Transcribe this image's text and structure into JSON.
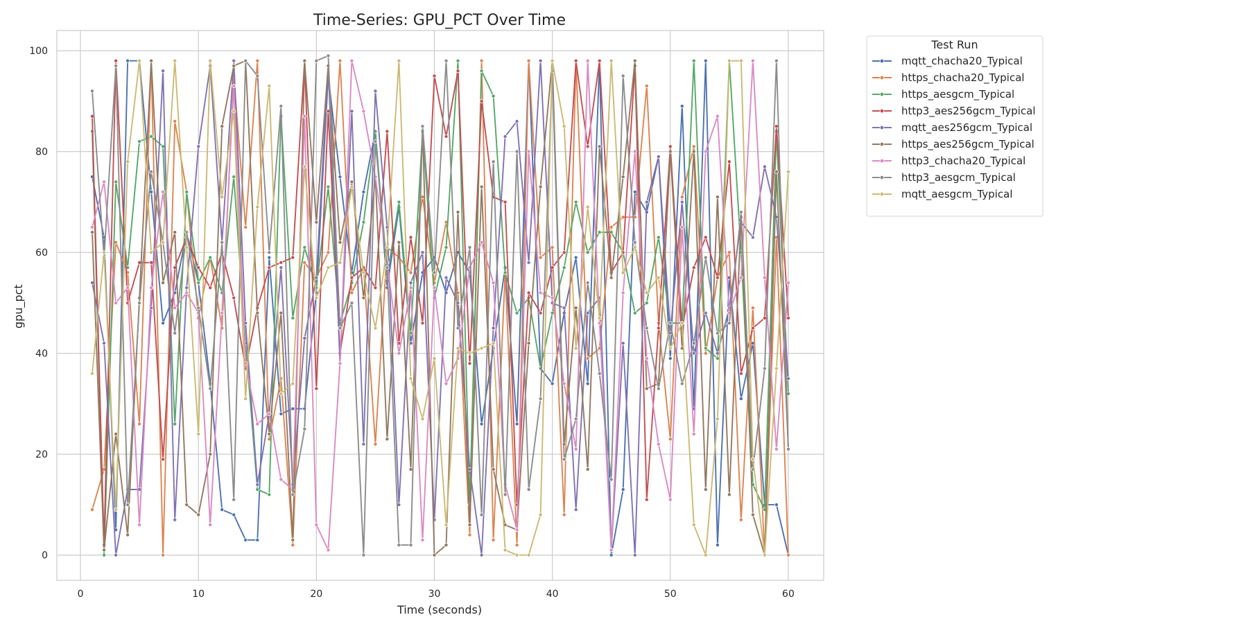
{
  "chart_data": {
    "type": "line",
    "title": "Time-Series: GPU_PCT Over Time",
    "xlabel": "Time (seconds)",
    "ylabel": "gpu_pct",
    "xlim": [
      -2,
      63
    ],
    "ylim": [
      -5,
      104
    ],
    "xticks": [
      0,
      10,
      20,
      30,
      40,
      50,
      60
    ],
    "yticks": [
      0,
      20,
      40,
      60,
      80,
      100
    ],
    "grid": true,
    "legend_title": "Test Run",
    "legend_position": "outside-top-right",
    "x": [
      1,
      2,
      3,
      4,
      5,
      6,
      7,
      8,
      9,
      10,
      11,
      12,
      13,
      14,
      15,
      16,
      17,
      18,
      19,
      20,
      21,
      22,
      23,
      24,
      25,
      26,
      27,
      28,
      29,
      30,
      31,
      32,
      33,
      34,
      35,
      36,
      37,
      38,
      39,
      40,
      41,
      42,
      43,
      44,
      45,
      46,
      47,
      48,
      49,
      50,
      51,
      52,
      53,
      54,
      55,
      56,
      57,
      58,
      59,
      60
    ],
    "series": [
      {
        "name": "mqtt_chacha20_Typical",
        "color": "#4c72b0",
        "values": [
          75,
          63,
          5,
          98,
          98,
          72,
          46,
          52,
          64,
          54,
          34,
          9,
          8,
          3,
          3,
          59,
          28,
          29,
          29,
          52,
          95,
          75,
          56,
          72,
          84,
          53,
          69,
          42,
          56,
          59,
          52,
          60,
          56,
          26,
          41,
          57,
          26,
          98,
          37,
          34,
          48,
          59,
          34,
          98,
          0,
          13,
          72,
          68,
          79,
          39,
          89,
          29,
          98,
          2,
          55,
          31,
          42,
          10,
          10,
          0
        ]
      },
      {
        "name": "https_chacha20_Typical",
        "color": "#dd8452",
        "values": [
          9,
          17,
          62,
          56,
          26,
          98,
          0,
          86,
          72,
          47,
          59,
          45,
          95,
          65,
          98,
          23,
          35,
          2,
          58,
          55,
          60,
          98,
          52,
          57,
          22,
          61,
          59,
          56,
          71,
          54,
          66,
          52,
          4,
          98,
          3,
          56,
          2,
          98,
          59,
          61,
          8,
          98,
          39,
          41,
          65,
          67,
          67,
          93,
          46,
          23,
          71,
          81,
          40,
          55,
          60,
          7,
          49,
          0,
          63,
          0
        ]
      },
      {
        "name": "https_aesgcm_Typical",
        "color": "#55a868",
        "values": [
          84,
          0,
          74,
          57,
          82,
          83,
          81,
          26,
          72,
          54,
          59,
          52,
          75,
          42,
          13,
          12,
          87,
          47,
          61,
          53,
          73,
          46,
          54,
          66,
          84,
          55,
          70,
          44,
          84,
          51,
          61,
          98,
          10,
          96,
          91,
          56,
          48,
          51,
          37,
          48,
          57,
          70,
          60,
          64,
          64,
          60,
          48,
          50,
          63,
          46,
          46,
          98,
          41,
          39,
          98,
          60,
          14,
          9,
          84,
          32
        ]
      },
      {
        "name": "http3_aes256gcm_Typical",
        "color": "#c44e52",
        "values": [
          87,
          2,
          98,
          50,
          58,
          58,
          19,
          57,
          63,
          57,
          53,
          60,
          51,
          37,
          49,
          57,
          58,
          59,
          98,
          33,
          88,
          40,
          55,
          57,
          53,
          84,
          42,
          63,
          46,
          95,
          83,
          96,
          38,
          90,
          71,
          70,
          10,
          52,
          48,
          57,
          60,
          98,
          81,
          98,
          56,
          60,
          97,
          11,
          45,
          81,
          45,
          57,
          63,
          55,
          78,
          36,
          45,
          47,
          85,
          47
        ]
      },
      {
        "name": "mqtt_aes256gcm_Typical",
        "color": "#8172b3",
        "values": [
          54,
          42,
          0,
          13,
          13,
          49,
          96,
          7,
          53,
          81,
          97,
          62,
          98,
          46,
          14,
          28,
          57,
          14,
          43,
          55,
          97,
          38,
          88,
          22,
          92,
          65,
          10,
          54,
          60,
          7,
          55,
          50,
          17,
          0,
          45,
          83,
          86,
          58,
          98,
          50,
          49,
          9,
          48,
          51,
          1,
          42,
          0,
          70,
          79,
          44,
          70,
          40,
          48,
          40,
          49,
          66,
          63,
          77,
          67,
          35
        ]
      },
      {
        "name": "https_aes256gcm_Typical",
        "color": "#937860",
        "values": [
          64,
          1,
          24,
          4,
          51,
          98,
          54,
          64,
          10,
          8,
          20,
          85,
          97,
          98,
          48,
          24,
          48,
          3,
          98,
          66,
          97,
          62,
          74,
          51,
          75,
          23,
          62,
          17,
          85,
          0,
          2,
          68,
          6,
          73,
          17,
          6,
          5,
          42,
          73,
          98,
          22,
          49,
          17,
          81,
          55,
          75,
          98,
          33,
          34,
          80,
          41,
          80,
          13,
          71,
          12,
          67,
          8,
          0,
          76,
          21
        ]
      },
      {
        "name": "http3_chacha20_Typical",
        "color": "#da8bc3",
        "values": [
          65,
          74,
          50,
          53,
          6,
          53,
          72,
          49,
          52,
          48,
          6,
          48,
          93,
          38,
          26,
          28,
          15,
          13,
          87,
          6,
          1,
          38,
          98,
          88,
          75,
          58,
          40,
          53,
          3,
          53,
          34,
          39,
          57,
          62,
          54,
          14,
          5,
          80,
          52,
          51,
          34,
          21,
          98,
          46,
          1,
          52,
          80,
          39,
          22,
          11,
          65,
          24,
          80,
          87,
          48,
          55,
          98,
          55,
          21,
          54
        ]
      },
      {
        "name": "http3_aesgcm_Typical",
        "color": "#8c8c8c",
        "values": [
          92,
          59,
          97,
          10,
          50,
          76,
          62,
          44,
          64,
          49,
          33,
          62,
          11,
          98,
          95,
          60,
          89,
          12,
          25,
          98,
          99,
          45,
          50,
          0,
          82,
          57,
          2,
          2,
          85,
          56,
          98,
          45,
          61,
          8,
          78,
          12,
          80,
          13,
          31,
          96,
          19,
          27,
          54,
          36,
          15,
          95,
          62,
          45,
          33,
          46,
          34,
          42,
          59,
          44,
          46,
          68,
          17,
          37,
          98,
          21
        ]
      },
      {
        "name": "mqtt_aesgcm_Typical",
        "color": "#ccb974",
        "values": [
          36,
          60,
          9,
          78,
          98,
          60,
          62,
          98,
          61,
          24,
          98,
          71,
          88,
          31,
          69,
          93,
          32,
          34,
          77,
          51,
          57,
          58,
          73,
          56,
          45,
          61,
          98,
          35,
          27,
          39,
          6,
          41,
          40,
          41,
          42,
          1,
          0,
          0,
          8,
          98,
          85,
          41,
          69,
          47,
          98,
          56,
          61,
          52,
          55,
          41,
          46,
          6,
          0,
          27,
          98,
          98,
          19,
          0,
          37,
          76
        ]
      }
    ]
  }
}
